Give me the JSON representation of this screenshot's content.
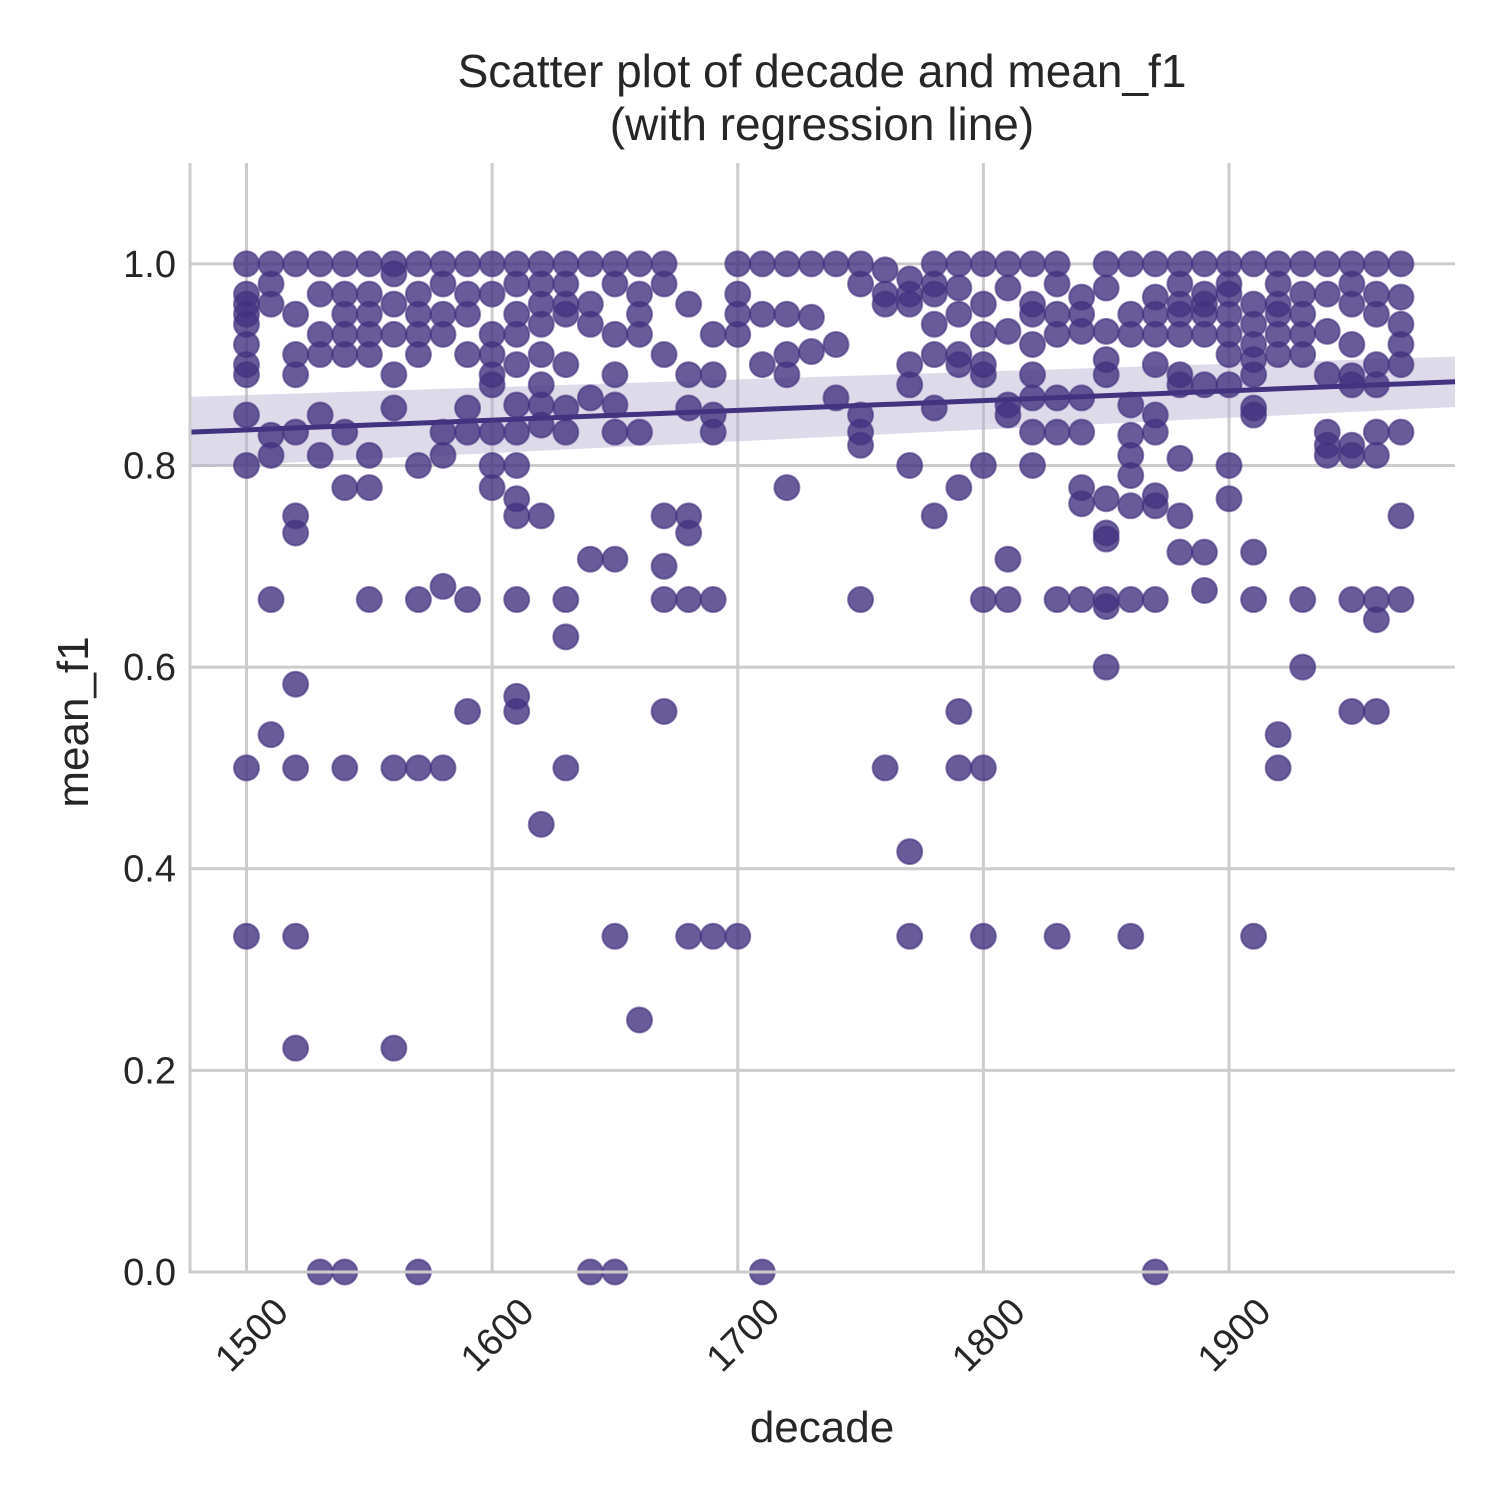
{
  "chart_data": {
    "type": "scatter",
    "title_line1": "Scatter plot of decade and mean_f1",
    "title_line2": "(with regression line)",
    "xlabel": "decade",
    "ylabel": "mean_f1",
    "xlim": [
      1477,
      1992
    ],
    "ylim": [
      0.0,
      1.1
    ],
    "x_ticks": [
      1500,
      1600,
      1700,
      1800,
      1900
    ],
    "y_ticks": [
      0.0,
      0.2,
      0.4,
      0.6,
      0.8,
      1.0
    ],
    "y_tick_labels": [
      "0.0",
      "0.2",
      "0.4",
      "0.6",
      "0.8",
      "1.0"
    ],
    "grid": true,
    "colors": {
      "points": "#43327f",
      "regression": "#43327f",
      "ci_band": "#b4aed0",
      "grid": "#cccccc"
    },
    "regression": {
      "x": [
        1477,
        1992
      ],
      "y": [
        0.833,
        0.883
      ],
      "ci_halfwidth": [
        0.035,
        0.025
      ]
    },
    "points": {
      "1500": [
        1.0,
        0.97,
        0.96,
        0.95,
        0.94,
        0.92,
        0.9,
        0.89,
        0.85,
        0.8,
        0.5,
        0.333
      ],
      "1510": [
        1.0,
        0.98,
        0.96,
        0.83,
        0.81,
        0.667,
        0.533
      ],
      "1520": [
        1.0,
        0.95,
        0.91,
        0.89,
        0.833,
        0.75,
        0.733,
        0.583,
        0.5,
        0.333,
        0.222
      ],
      "1530": [
        1.0,
        0.97,
        0.93,
        0.91,
        0.85,
        0.81,
        0.0
      ],
      "1540": [
        1.0,
        0.97,
        0.95,
        0.93,
        0.91,
        0.833,
        0.778,
        0.5,
        0.0
      ],
      "1550": [
        1.0,
        0.97,
        0.95,
        0.93,
        0.91,
        0.81,
        0.778,
        0.667
      ],
      "1560": [
        1.0,
        0.99,
        0.96,
        0.93,
        0.89,
        0.857,
        0.5,
        0.222
      ],
      "1570": [
        1.0,
        0.97,
        0.95,
        0.93,
        0.91,
        0.8,
        0.667,
        0.5,
        0.0
      ],
      "1580": [
        1.0,
        0.98,
        0.95,
        0.93,
        0.833,
        0.81,
        0.68,
        0.5
      ],
      "1590": [
        1.0,
        0.97,
        0.95,
        0.91,
        0.857,
        0.833,
        0.667,
        0.556
      ],
      "1600": [
        1.0,
        0.97,
        0.93,
        0.91,
        0.89,
        0.88,
        0.833,
        0.8,
        0.778
      ],
      "1610": [
        1.0,
        0.98,
        0.95,
        0.93,
        0.9,
        0.86,
        0.833,
        0.8,
        0.767,
        0.75,
        0.667,
        0.571,
        0.556
      ],
      "1620": [
        1.0,
        0.98,
        0.96,
        0.94,
        0.91,
        0.88,
        0.86,
        0.84,
        0.75,
        0.444
      ],
      "1630": [
        1.0,
        0.98,
        0.96,
        0.95,
        0.9,
        0.857,
        0.833,
        0.667,
        0.63,
        0.5
      ],
      "1640": [
        1.0,
        0.96,
        0.94,
        0.867,
        0.707,
        0.0
      ],
      "1650": [
        1.0,
        0.98,
        0.93,
        0.89,
        0.86,
        0.833,
        0.707,
        0.333,
        0.0
      ],
      "1660": [
        1.0,
        0.97,
        0.95,
        0.93,
        0.833,
        0.25
      ],
      "1670": [
        1.0,
        0.98,
        0.91,
        0.75,
        0.7,
        0.667,
        0.556
      ],
      "1680": [
        0.96,
        0.89,
        0.857,
        0.75,
        0.733,
        0.667,
        0.333
      ],
      "1690": [
        0.93,
        0.89,
        0.85,
        0.833,
        0.667,
        0.333
      ],
      "1700": [
        1.0,
        0.97,
        0.95,
        0.93,
        0.333
      ],
      "1710": [
        1.0,
        0.95,
        0.9,
        0.0
      ],
      "1720": [
        1.0,
        0.95,
        0.91,
        0.89,
        0.778
      ],
      "1730": [
        1.0,
        0.947,
        0.913
      ],
      "1740": [
        1.0,
        0.92,
        0.867
      ],
      "1750": [
        1.0,
        0.98,
        0.85,
        0.833,
        0.82,
        0.667
      ],
      "1760": [
        0.994,
        0.97,
        0.96,
        0.5
      ],
      "1770": [
        0.985,
        0.97,
        0.96,
        0.9,
        0.88,
        0.8,
        0.417,
        0.333
      ],
      "1780": [
        1.0,
        0.98,
        0.97,
        0.94,
        0.91,
        0.857,
        0.75
      ],
      "1790": [
        1.0,
        0.976,
        0.95,
        0.91,
        0.9,
        0.778,
        0.556,
        0.5
      ],
      "1800": [
        1.0,
        0.96,
        0.93,
        0.9,
        0.89,
        0.8,
        0.667,
        0.5,
        0.333
      ],
      "1810": [
        1.0,
        0.976,
        0.933,
        0.86,
        0.85,
        0.707,
        0.667
      ],
      "1820": [
        1.0,
        0.96,
        0.95,
        0.92,
        0.89,
        0.867,
        0.833,
        0.8
      ],
      "1830": [
        1.0,
        0.98,
        0.95,
        0.93,
        0.867,
        0.833,
        0.667,
        0.333
      ],
      "1840": [
        0.967,
        0.95,
        0.933,
        0.867,
        0.833,
        0.778,
        0.762,
        0.667
      ],
      "1850": [
        1.0,
        0.976,
        0.933,
        0.905,
        0.89,
        0.767,
        0.733,
        0.727,
        0.667,
        0.66,
        0.6
      ],
      "1860": [
        1.0,
        0.95,
        0.93,
        0.86,
        0.83,
        0.81,
        0.79,
        0.76,
        0.667,
        0.333
      ],
      "1870": [
        1.0,
        0.967,
        0.95,
        0.93,
        0.9,
        0.85,
        0.833,
        0.77,
        0.76,
        0.667,
        0.0
      ],
      "1880": [
        1.0,
        0.98,
        0.96,
        0.95,
        0.93,
        0.89,
        0.88,
        0.807,
        0.75,
        0.714
      ],
      "1890": [
        1.0,
        0.97,
        0.96,
        0.95,
        0.93,
        0.88,
        0.714,
        0.676
      ],
      "1900": [
        1.0,
        0.98,
        0.97,
        0.95,
        0.93,
        0.91,
        0.88,
        0.8,
        0.767
      ],
      "1910": [
        1.0,
        0.96,
        0.94,
        0.92,
        0.905,
        0.89,
        0.857,
        0.85,
        0.714,
        0.667,
        0.333
      ],
      "1920": [
        1.0,
        0.98,
        0.96,
        0.95,
        0.93,
        0.91,
        0.533,
        0.5
      ],
      "1930": [
        1.0,
        0.97,
        0.95,
        0.93,
        0.91,
        0.667,
        0.6
      ],
      "1940": [
        1.0,
        0.97,
        0.933,
        0.89,
        0.833,
        0.82,
        0.81
      ],
      "1950": [
        1.0,
        0.98,
        0.96,
        0.92,
        0.889,
        0.88,
        0.82,
        0.81,
        0.667,
        0.556
      ],
      "1960": [
        1.0,
        0.97,
        0.95,
        0.9,
        0.88,
        0.833,
        0.81,
        0.667,
        0.647,
        0.556
      ],
      "1970": [
        1.0,
        0.967,
        0.94,
        0.92,
        0.9,
        0.833,
        0.75,
        0.667
      ]
    }
  }
}
